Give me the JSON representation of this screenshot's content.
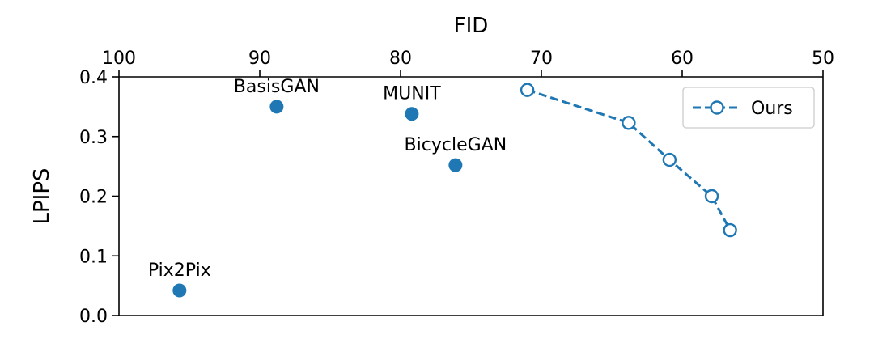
{
  "chart_data": {
    "type": "scatter",
    "title": "",
    "xlabel": "FID",
    "ylabel": "LPIPS",
    "x_axis_position": "top",
    "x_inverted": true,
    "xlim": [
      100,
      50
    ],
    "ylim": [
      0.0,
      0.4
    ],
    "x_ticks": [
      100,
      90,
      80,
      70,
      60,
      50
    ],
    "x_tick_labels": [
      "100",
      "90",
      "80",
      "70",
      "60",
      "50"
    ],
    "y_ticks": [
      0.0,
      0.1,
      0.2,
      0.3,
      0.4
    ],
    "y_tick_labels": [
      "0.0",
      "0.1",
      "0.2",
      "0.3",
      "0.4"
    ],
    "grid": false,
    "legend_position": "top-right",
    "colors": {
      "points": "#1f77b4",
      "series": "#1f77b4"
    },
    "baselines": [
      {
        "name": "Pix2Pix",
        "x": 95.7,
        "y": 0.042
      },
      {
        "name": "BasisGAN",
        "x": 88.8,
        "y": 0.35
      },
      {
        "name": "MUNIT",
        "x": 79.2,
        "y": 0.338
      },
      {
        "name": "BicycleGAN",
        "x": 76.1,
        "y": 0.252
      }
    ],
    "series": [
      {
        "name": "Ours",
        "style": "dashed-line-hollow-circle",
        "points": [
          {
            "x": 71.0,
            "y": 0.378
          },
          {
            "x": 63.8,
            "y": 0.323
          },
          {
            "x": 60.9,
            "y": 0.261
          },
          {
            "x": 57.9,
            "y": 0.2
          },
          {
            "x": 56.6,
            "y": 0.143
          }
        ]
      }
    ]
  }
}
